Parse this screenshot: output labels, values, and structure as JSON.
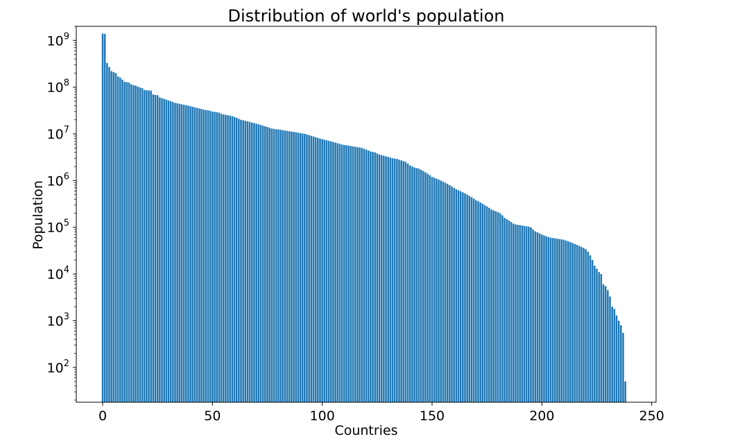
{
  "chart_data": {
    "type": "bar",
    "title": "Distribution of world's population",
    "xlabel": "Countries",
    "ylabel": "Population",
    "yscale": "log",
    "ylim": [
      18,
      2000000000
    ],
    "xlim": [
      -12,
      252
    ],
    "x_ticks": [
      0,
      50,
      100,
      150,
      200,
      250
    ],
    "y_ticks": [
      {
        "base": "10",
        "exp": "2",
        "value": 100
      },
      {
        "base": "10",
        "exp": "3",
        "value": 1000
      },
      {
        "base": "10",
        "exp": "4",
        "value": 10000
      },
      {
        "base": "10",
        "exp": "5",
        "value": 100000
      },
      {
        "base": "10",
        "exp": "6",
        "value": 1000000
      },
      {
        "base": "10",
        "exp": "7",
        "value": 10000000
      },
      {
        "base": "10",
        "exp": "8",
        "value": 100000000
      },
      {
        "base": "10",
        "exp": "9",
        "value": 1000000000
      }
    ],
    "bar_color": "#1f77b4",
    "grid": false,
    "values": [
      1400000000,
      1380000000,
      330000000,
      270000000,
      220000000,
      210000000,
      200000000,
      170000000,
      160000000,
      145000000,
      130000000,
      128000000,
      125000000,
      115000000,
      110000000,
      108000000,
      103000000,
      98000000,
      95000000,
      87000000,
      86000000,
      85000000,
      84000000,
      70000000,
      68000000,
      67000000,
      60000000,
      58000000,
      56000000,
      54000000,
      52000000,
      50000000,
      48000000,
      46000000,
      45000000,
      44000000,
      43000000,
      42000000,
      41000000,
      40000000,
      39000000,
      38000000,
      37000000,
      36000000,
      35000000,
      34000000,
      33000000,
      32500000,
      32000000,
      31000000,
      30000000,
      29500000,
      29000000,
      28500000,
      27000000,
      26000000,
      25500000,
      25000000,
      24500000,
      24000000,
      23000000,
      22000000,
      21000000,
      20000000,
      19500000,
      19000000,
      18500000,
      18000000,
      17500000,
      17000000,
      16500000,
      16000000,
      15500000,
      15000000,
      14500000,
      14000000,
      13500000,
      13000000,
      12800000,
      12600000,
      12400000,
      12200000,
      12000000,
      11800000,
      11600000,
      11400000,
      11200000,
      11000000,
      10800000,
      10600000,
      10400000,
      10200000,
      10000000,
      9700000,
      9400000,
      9100000,
      8800000,
      8500000,
      8200000,
      7900000,
      7700000,
      7500000,
      7300000,
      7100000,
      6900000,
      6700000,
      6500000,
      6300000,
      6100000,
      5900000,
      5800000,
      5700000,
      5600000,
      5500000,
      5400000,
      5300000,
      5200000,
      5100000,
      5000000,
      4800000,
      4600000,
      4400000,
      4200000,
      4100000,
      4000000,
      3800000,
      3600000,
      3500000,
      3400000,
      3300000,
      3200000,
      3100000,
      3000000,
      2950000,
      2900000,
      2800000,
      2700000,
      2600000,
      2500000,
      2300000,
      2100000,
      2000000,
      1900000,
      1850000,
      1800000,
      1700000,
      1600000,
      1500000,
      1400000,
      1300000,
      1200000,
      1150000,
      1100000,
      1050000,
      1000000,
      950000,
      900000,
      850000,
      800000,
      750000,
      700000,
      650000,
      620000,
      590000,
      560000,
      530000,
      500000,
      470000,
      440000,
      410000,
      380000,
      360000,
      340000,
      320000,
      300000,
      280000,
      260000,
      240000,
      230000,
      220000,
      210000,
      200000,
      180000,
      160000,
      150000,
      140000,
      130000,
      120000,
      115000,
      113000,
      111000,
      109000,
      107000,
      105000,
      103000,
      100000,
      90000,
      82000,
      78000,
      74000,
      70000,
      67000,
      64000,
      62000,
      60000,
      59000,
      58000,
      57000,
      56000,
      55000,
      54000,
      52000,
      50000,
      48000,
      46000,
      44000,
      42000,
      40000,
      38000,
      36000,
      34000,
      30000,
      25000,
      20000,
      15000,
      13000,
      11000,
      10000,
      6000,
      5500,
      4500,
      3300,
      2000,
      1800,
      1300,
      1000,
      800,
      550,
      50
    ]
  }
}
